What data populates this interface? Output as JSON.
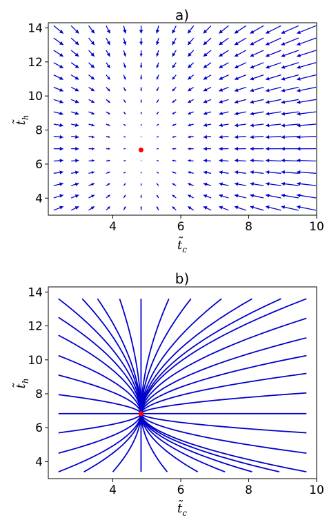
{
  "chart_data": [
    {
      "type": "quiver",
      "title": "a)",
      "xlabel": "t̃",
      "xlabel_sub": "c",
      "ylabel": "t̃",
      "ylabel_sub": "h",
      "xlim": [
        2.1,
        10.0
      ],
      "ylim": [
        3.0,
        14.3
      ],
      "xticks": [
        4,
        6,
        8,
        10
      ],
      "yticks": [
        4,
        6,
        8,
        10,
        12,
        14
      ],
      "fixed_point": {
        "x": 4.83,
        "y": 6.83,
        "color": "#ff0000"
      },
      "field": {
        "x_start": 2.4,
        "x_end": 9.7,
        "nx": 16,
        "y_start": 3.4,
        "y_end": 13.9,
        "ny": 16,
        "rate_x": 1.0,
        "rate_y": 0.55
      },
      "color": "#0000cc"
    },
    {
      "type": "streamlines",
      "title": "b)",
      "xlabel": "t̃",
      "xlabel_sub": "c",
      "ylabel": "t̃",
      "ylabel_sub": "h",
      "xlim": [
        2.1,
        10.0
      ],
      "ylim": [
        3.0,
        14.3
      ],
      "xticks": [
        4,
        6,
        8,
        10
      ],
      "yticks": [
        4,
        6,
        8,
        10,
        12,
        14
      ],
      "fixed_point": {
        "x": 4.83,
        "y": 6.83,
        "color": "#ff0000"
      },
      "boundary": {
        "x_min": 2.4,
        "x_max": 9.7,
        "y_min": 3.4,
        "y_max": 13.65
      },
      "starts": [
        [
          2.4,
          13.6
        ],
        [
          2.4,
          12.5
        ],
        [
          2.4,
          11.45
        ],
        [
          2.4,
          10.25
        ],
        [
          2.4,
          9.1
        ],
        [
          2.4,
          7.95
        ],
        [
          2.4,
          6.83
        ],
        [
          2.4,
          5.7
        ],
        [
          2.4,
          4.5
        ],
        [
          2.4,
          3.4
        ],
        [
          3.1,
          13.6
        ],
        [
          3.55,
          13.6
        ],
        [
          4.2,
          13.6
        ],
        [
          4.83,
          13.6
        ],
        [
          5.65,
          13.6
        ],
        [
          6.3,
          13.6
        ],
        [
          7.2,
          13.6
        ],
        [
          8.1,
          13.6
        ],
        [
          8.95,
          13.6
        ],
        [
          9.7,
          13.6
        ],
        [
          9.7,
          12.45
        ],
        [
          9.7,
          11.3
        ],
        [
          9.7,
          10.25
        ],
        [
          9.7,
          9.2
        ],
        [
          9.7,
          8.05
        ],
        [
          9.7,
          6.83
        ],
        [
          9.7,
          5.7
        ],
        [
          9.7,
          4.5
        ],
        [
          9.7,
          3.4
        ],
        [
          3.15,
          3.4
        ],
        [
          4.0,
          3.4
        ],
        [
          4.83,
          3.4
        ],
        [
          5.6,
          3.4
        ],
        [
          6.5,
          3.4
        ],
        [
          7.3,
          3.4
        ],
        [
          8.1,
          3.4
        ],
        [
          8.9,
          3.4
        ]
      ],
      "color": "#0000cc"
    }
  ]
}
